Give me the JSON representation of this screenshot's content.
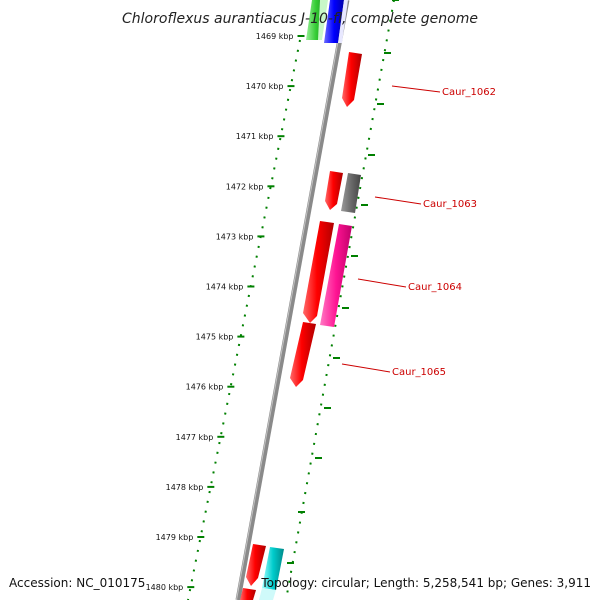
{
  "title": "Chloroflexus aurantiacus J-10-fl, complete genome",
  "footer": {
    "accession": "Accession: NC_010175",
    "summary": "Topology: circular; Length: 5,258,541 bp; Genes: 3,911"
  },
  "ticks": [
    "1469 kbp",
    "1470 kbp",
    "1471 kbp",
    "1472 kbp",
    "1473 kbp",
    "1474 kbp",
    "1475 kbp",
    "1476 kbp",
    "1477 kbp",
    "1478 kbp",
    "1479 kbp",
    "1480 kbp"
  ],
  "gene_labels": [
    "Caur_1062",
    "Caur_1063",
    "Caur_1064",
    "Caur_1065"
  ],
  "colors": {
    "gene_red": "#ff0000",
    "gene_grey": "#6b6b6b",
    "gene_pink": "#ff1493",
    "gene_blue": "#0000ff",
    "gene_green": "#33cc33",
    "gene_cyan": "#00cccc",
    "tick_green": "#008000",
    "backbone": "#8a8a8a",
    "label_red": "#cc0000"
  }
}
